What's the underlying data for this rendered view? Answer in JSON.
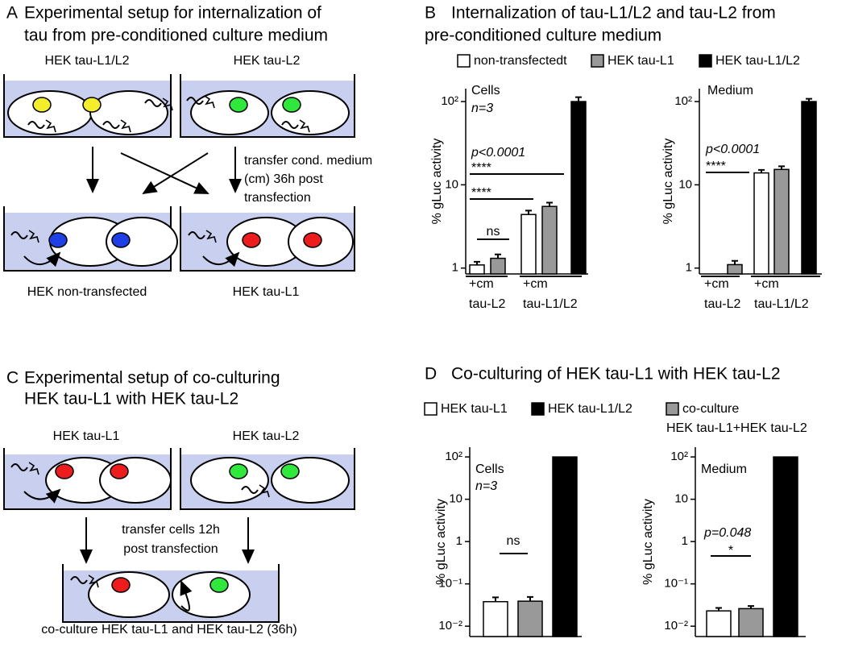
{
  "panel_a": {
    "letter": "A",
    "title": [
      "Experimental setup for internalization of",
      "tau from pre-conditioned culture medium"
    ],
    "top_labels": [
      "HEK tau-L1/L2",
      "HEK tau-L2"
    ],
    "arrow_label": [
      "transfer cond. medium",
      "(cm) 36h post",
      "transfection"
    ],
    "bottom_labels": [
      "HEK non-transfected",
      "HEK tau-L1"
    ]
  },
  "panel_c": {
    "letter": "C",
    "title": [
      "Experimental setup of co-culturing",
      "HEK tau-L1 with HEK tau-L2"
    ],
    "top_labels": [
      "HEK tau-L1",
      "HEK tau-L2"
    ],
    "arrow_label": [
      "transfer cells 12h",
      "post transfection"
    ],
    "bottom_label": "co-culture HEK tau-L1 and HEK tau-L2 (36h)"
  },
  "chart_data": [
    {
      "type": "bar",
      "letter": "B",
      "title": [
        "Internalization of tau-L1/L2 and tau-L2 from",
        "pre-conditioned culture medium"
      ],
      "log_scale": true,
      "series": [
        {
          "name": "non-transfectedt",
          "color": "#ffffff"
        },
        {
          "name": "HEK tau-L1",
          "color": "#999999"
        },
        {
          "name": "HEK tau-L1/L2",
          "color": "#000000"
        }
      ],
      "groups": [
        [
          "+cm",
          "tau-L2"
        ],
        [
          "+cm",
          "tau-L1/L2"
        ]
      ],
      "panels": [
        {
          "label": "Cells",
          "note": "n=3",
          "ylabel": "% gLuc activity",
          "ylim": [
            0.85,
            143
          ],
          "yticks": [
            1,
            10,
            {
              "value": 100,
              "label": "10²"
            }
          ],
          "values": [
            [
              1.09,
              null,
              4.4,
              null,
              null
            ],
            [
              null,
              1.31,
              null,
              5.5,
              null
            ],
            [
              null,
              null,
              null,
              null,
              100
            ]
          ],
          "errors": [
            [
              0.1,
              null,
              0.5,
              null,
              null
            ],
            [
              null,
              0.15,
              null,
              0.6,
              null
            ],
            [
              null,
              null,
              null,
              null,
              13
            ]
          ],
          "annotations": [
            "p<0.0001",
            "****",
            "****",
            "ns"
          ]
        },
        {
          "label": "Medium",
          "ylabel": "% gLuc activity",
          "ylim": [
            0.85,
            143
          ],
          "yticks": [
            1,
            10,
            {
              "value": 100,
              "label": "10²"
            }
          ],
          "values": [
            [
              null,
              null,
              13.9,
              null,
              null
            ],
            [
              null,
              1.1,
              null,
              15.3,
              null
            ],
            [
              null,
              null,
              null,
              null,
              100
            ]
          ],
          "errors": [
            [
              null,
              null,
              1.2,
              null,
              null
            ],
            [
              null,
              0.12,
              null,
              1.4,
              null
            ],
            [
              null,
              null,
              null,
              null,
              8
            ]
          ],
          "annotations": [
            "p<0.0001",
            "****"
          ]
        }
      ]
    },
    {
      "type": "bar",
      "letter": "D",
      "title": [
        "Co-culturing of HEK tau-L1 with HEK tau-L2"
      ],
      "log_scale": true,
      "series": [
        {
          "name": [
            "HEK tau-L1"
          ],
          "color": "#ffffff"
        },
        {
          "name": [
            "HEK tau-L1/L2"
          ],
          "color": "#000000"
        },
        {
          "name": [
            "co-culture",
            "HEK tau-L1+HEK tau-L2"
          ],
          "color": "#999999"
        }
      ],
      "panels": [
        {
          "label": "Cells",
          "note": "n=3",
          "ylabel": "% gLuc activity",
          "ylim": [
            0.0057,
            170
          ],
          "yticks": [
            {
              "value": 0.01,
              "label": "10⁻²"
            },
            {
              "value": 0.1,
              "label": "10⁻¹"
            },
            1,
            10,
            {
              "value": 100,
              "label": "10²"
            }
          ],
          "values": [
            [
              0.038,
              null,
              null
            ],
            [
              null,
              null,
              100
            ],
            [
              null,
              0.039,
              null
            ]
          ],
          "errors": [
            [
              0.01,
              null,
              null
            ],
            [
              null,
              null,
              null
            ],
            [
              null,
              0.01,
              null
            ]
          ],
          "annotations": [
            "ns"
          ]
        },
        {
          "label": "Medium",
          "ylabel": "% gLuc activity",
          "ylim": [
            0.0057,
            170
          ],
          "yticks": [
            {
              "value": 0.01,
              "label": "10⁻²"
            },
            {
              "value": 0.1,
              "label": "10⁻¹"
            },
            1,
            10,
            {
              "value": 100,
              "label": "10²"
            }
          ],
          "values": [
            [
              0.023,
              null,
              null
            ],
            [
              null,
              null,
              100
            ],
            [
              null,
              0.026,
              null
            ]
          ],
          "errors": [
            [
              0.004,
              null,
              null
            ],
            [
              null,
              null,
              null
            ],
            [
              null,
              0.004,
              null
            ]
          ],
          "annotations": [
            "p=0.048",
            "*"
          ]
        }
      ]
    }
  ]
}
